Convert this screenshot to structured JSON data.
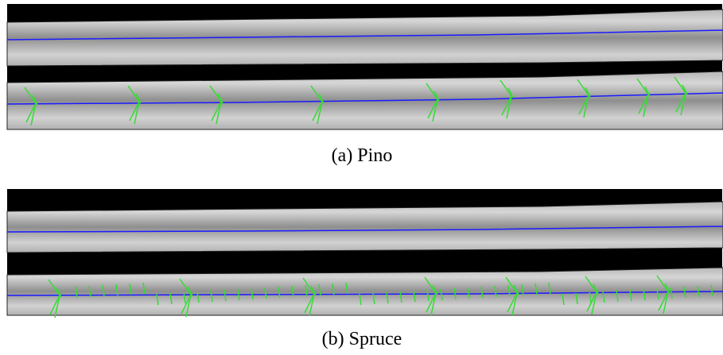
{
  "figure": {
    "panels": [
      {
        "caption": "(a) Pino"
      },
      {
        "caption": "(b) Spruce"
      }
    ]
  }
}
